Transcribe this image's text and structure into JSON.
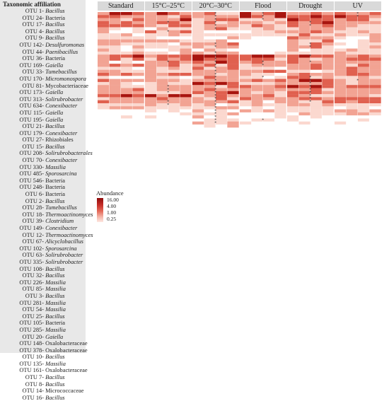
{
  "taxonomy_header": "Taxonomic affiliation",
  "taxa": [
    {
      "otu": "OTU 1-",
      "name": "Bacillus",
      "italic": true
    },
    {
      "otu": "OTU 24-",
      "name": "Bacteria",
      "italic": false
    },
    {
      "otu": "OTU 17-",
      "name": "Bacillus",
      "italic": true
    },
    {
      "otu": "OTU 4-",
      "name": "Bacillus",
      "italic": true
    },
    {
      "otu": "OTU 9-",
      "name": "Bacillus",
      "italic": true
    },
    {
      "otu": "OTU 142-",
      "name": "Desulfuromonas",
      "italic": true
    },
    {
      "otu": "OTU 44-",
      "name": "Paenibacillus",
      "italic": true
    },
    {
      "otu": "OTU 36-",
      "name": "Bacteria",
      "italic": false
    },
    {
      "otu": "OTU 169-",
      "name": "Gaiella",
      "italic": true
    },
    {
      "otu": "OTU 33-",
      "name": "Tumebacillus",
      "italic": true
    },
    {
      "otu": "OTU 170-",
      "name": "Micromonospora",
      "italic": true
    },
    {
      "otu": "OTU 81-",
      "name": "Mycobacteriaceae",
      "italic": false
    },
    {
      "otu": "OTU 173-",
      "name": "Gaiella",
      "italic": true
    },
    {
      "otu": "OTU 313-",
      "name": "Solirubrobacter",
      "italic": true
    },
    {
      "otu": "OTU 634-",
      "name": "Conexibacter",
      "italic": true
    },
    {
      "otu": "OTU 115-",
      "name": "Gaiella",
      "italic": true
    },
    {
      "otu": "OTU 195-",
      "name": "Gaiella",
      "italic": true
    },
    {
      "otu": "OTU 21-",
      "name": "Bacillus",
      "italic": true
    },
    {
      "otu": "OTU 179-",
      "name": "Conexibacter",
      "italic": true
    },
    {
      "otu": "OTU 27-",
      "name": "Rhizobiales",
      "italic": false
    },
    {
      "otu": "OTU 15-",
      "name": "Bacillus",
      "italic": true
    },
    {
      "otu": "OTU 208-",
      "name": "Solirubrobacterales",
      "italic": true
    },
    {
      "otu": "OTU 70-",
      "name": "Conexibacter",
      "italic": true
    },
    {
      "otu": "OTU 330-",
      "name": "Massilia",
      "italic": true
    },
    {
      "otu": "OTU 485-",
      "name": "Sporosarcina",
      "italic": true
    },
    {
      "otu": "OTU 546-",
      "name": "Bacteria",
      "italic": false
    },
    {
      "otu": "OTU 248-",
      "name": "Bacteria",
      "italic": false
    },
    {
      "otu": "OTU 6-",
      "name": "Bacteria",
      "italic": false
    },
    {
      "otu": "OTU 2-",
      "name": "Bacillus",
      "italic": true
    },
    {
      "otu": "OTU 28-",
      "name": "Tumebacillus",
      "italic": true
    },
    {
      "otu": "OTU 18-",
      "name": "Thermoactinomyces",
      "italic": true
    },
    {
      "otu": "OTU 39-",
      "name": "Clostridium",
      "italic": true
    },
    {
      "otu": "OTU 149-",
      "name": "Conexibacter",
      "italic": true
    },
    {
      "otu": "OTU 12-",
      "name": "Thermoactinomyces",
      "italic": true
    },
    {
      "otu": "OTU 67-",
      "name": "Alicyclobacillus",
      "italic": true
    },
    {
      "otu": "OTU 102-",
      "name": "Sporosarcina",
      "italic": true
    },
    {
      "otu": "OTU 63-",
      "name": "Solirubrobacter",
      "italic": true
    },
    {
      "otu": "OTU 335-",
      "name": "Solirubrobacter",
      "italic": true
    },
    {
      "otu": "OTU 108-",
      "name": "Bacillus",
      "italic": true
    },
    {
      "otu": "OTU 32-",
      "name": "Bacillus",
      "italic": true
    },
    {
      "otu": "OTU 226-",
      "name": "Massilia",
      "italic": true
    },
    {
      "otu": "OTU 85-",
      "name": "Massilia",
      "italic": true
    },
    {
      "otu": "OTU 3-",
      "name": "Bacillus",
      "italic": true
    },
    {
      "otu": "OTU 281-",
      "name": "Massilia",
      "italic": true
    },
    {
      "otu": "OTU 54-",
      "name": "Massilia",
      "italic": true
    },
    {
      "otu": "OTU 25-",
      "name": "Bacillus",
      "italic": true
    },
    {
      "otu": "OTU 105-",
      "name": "Bacteria",
      "italic": false
    },
    {
      "otu": "OTU 285-",
      "name": "Massilia",
      "italic": true
    },
    {
      "otu": "OTU 20-",
      "name": "Gaiella",
      "italic": true
    },
    {
      "otu": "OTU 148-",
      "name": "Oxalobacteraceae",
      "italic": false
    },
    {
      "otu": "OTU 378-",
      "name": "Oxalobacteraceae",
      "italic": false
    },
    {
      "otu": "OTU 10-",
      "name": "Bacillus",
      "italic": true
    },
    {
      "otu": "OTU 135-",
      "name": "Massilia",
      "italic": true
    },
    {
      "otu": "OTU 161-",
      "name": "Oxalobacteraceae",
      "italic": false
    },
    {
      "otu": "OTU 7-",
      "name": "Bacillus",
      "italic": true
    },
    {
      "otu": "OTU 8-",
      "name": "Bacillus",
      "italic": true
    },
    {
      "otu": "OTU 14-",
      "name": "Micrococcaceae",
      "italic": false
    },
    {
      "otu": "OTU 16-",
      "name": "Bacillus",
      "italic": true
    }
  ],
  "legend": {
    "title": "Abundance",
    "ticks": [
      "16.00",
      "4.00",
      "1.00",
      "0.25"
    ]
  },
  "colors": {
    "low": "#ffffff",
    "mid": "#f4a592",
    "high": "#8e0b0b"
  },
  "chart_data": {
    "type": "heatmap",
    "panels": [
      "Standard",
      "15°C–25°C",
      "20°C–30°C",
      "Flood",
      "Drought",
      "UV"
    ],
    "n_rows": 58,
    "columns_per_panel": 4,
    "panel_row_profiles": [
      [
        3,
        3,
        2,
        2,
        3,
        1,
        1,
        1,
        1,
        2,
        1,
        1,
        1,
        1,
        3,
        2,
        1,
        2,
        1,
        1,
        2,
        1,
        2,
        1,
        2,
        2,
        2,
        3,
        2,
        2,
        1,
        1,
        0,
        0,
        0,
        0,
        0,
        0,
        0,
        0,
        0,
        0,
        0,
        0,
        0,
        0,
        0,
        0,
        0,
        0,
        0,
        0,
        0,
        0,
        0,
        0,
        0,
        0
      ],
      [
        3,
        2,
        3,
        2,
        2,
        1,
        2,
        1,
        0,
        2,
        1,
        1,
        1,
        1,
        3,
        2,
        2,
        2,
        1,
        2,
        2,
        1,
        2,
        1,
        2,
        2,
        2,
        3,
        2,
        2,
        1,
        1,
        1,
        0,
        0,
        0,
        0,
        0,
        0,
        0,
        0,
        0,
        0,
        0,
        0,
        0,
        0,
        0,
        0,
        0,
        0,
        0,
        0,
        0,
        0,
        0,
        0,
        0
      ],
      [
        2,
        2,
        2,
        2,
        2,
        2,
        1,
        1,
        1,
        1,
        2,
        1,
        1,
        1,
        4,
        3,
        3,
        2,
        2,
        2,
        2,
        2,
        2,
        3,
        2,
        2,
        3,
        2,
        2,
        2,
        1,
        1,
        1,
        1,
        1,
        1,
        1,
        1,
        0,
        0,
        0,
        0,
        0,
        0,
        0,
        0,
        0,
        0,
        0,
        0,
        0,
        0,
        0,
        0,
        0,
        0,
        0,
        0
      ],
      [
        3,
        3,
        2,
        2,
        2,
        1,
        1,
        1,
        0,
        0,
        0,
        0,
        0,
        0,
        3,
        2,
        2,
        2,
        1,
        2,
        1,
        1,
        2,
        1,
        2,
        2,
        2,
        2,
        2,
        1,
        1,
        1,
        1,
        0,
        0,
        0,
        0,
        0,
        0,
        0,
        0,
        0,
        0,
        0,
        0,
        0,
        0,
        0,
        0,
        0,
        0,
        0,
        0,
        0,
        0,
        0,
        0,
        0
      ],
      [
        2,
        3,
        3,
        3,
        3,
        2,
        2,
        2,
        2,
        2,
        2,
        2,
        1,
        1,
        3,
        2,
        2,
        2,
        2,
        1,
        2,
        2,
        3,
        2,
        3,
        2,
        3,
        2,
        2,
        2,
        1,
        1,
        1,
        1,
        0,
        0,
        0,
        0,
        0,
        0,
        0,
        0,
        0,
        0,
        0,
        0,
        0,
        0,
        0,
        0,
        0,
        0,
        0,
        0,
        0,
        0,
        0,
        0
      ],
      [
        3,
        3,
        2,
        2,
        2,
        1,
        1,
        1,
        1,
        1,
        1,
        1,
        1,
        1,
        2,
        2,
        2,
        2,
        2,
        2,
        2,
        1,
        2,
        1,
        2,
        2,
        2,
        2,
        2,
        2,
        1,
        1,
        1,
        1,
        0,
        0,
        0,
        0,
        0,
        0,
        0,
        0,
        0,
        0,
        0,
        0,
        0,
        0,
        0,
        0,
        0,
        0,
        0,
        0,
        0,
        0,
        0,
        0
      ]
    ],
    "significance_marks": {
      "Standard": [],
      "15°C–25°C": [
        3,
        6,
        16,
        24,
        25,
        26,
        29,
        30
      ],
      "20°C–30°C": [
        0,
        1,
        2,
        3,
        4,
        5,
        10,
        11,
        13,
        14,
        15,
        16,
        17,
        18,
        19,
        20,
        21,
        22,
        23,
        24,
        25,
        26,
        27,
        28,
        29,
        30,
        31,
        32,
        33,
        34,
        35,
        36
      ],
      "Flood": [
        0,
        1,
        2,
        16,
        17,
        21,
        35
      ],
      "Drought": [
        3,
        4,
        10,
        11,
        14,
        16,
        21,
        22,
        23,
        24,
        25,
        26,
        27,
        28,
        29
      ],
      "UV": [
        0,
        1,
        22
      ]
    }
  }
}
